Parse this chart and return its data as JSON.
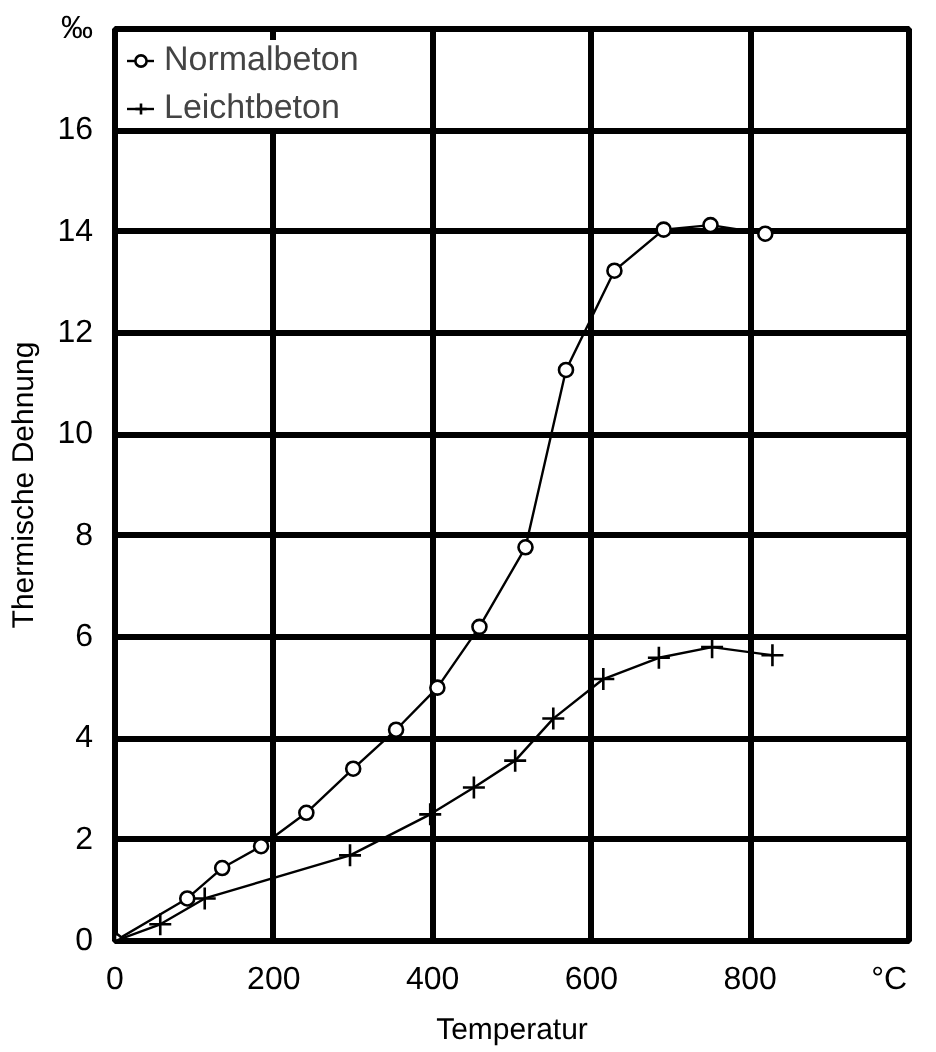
{
  "chart_data": {
    "type": "line",
    "xlabel": "Temperatur",
    "ylabel": "Thermische Dehnung",
    "xlim": [
      0,
      1000
    ],
    "ylim": [
      0,
      18
    ],
    "xticks": [
      0,
      200,
      400,
      600,
      800,
      {
        "value": 975,
        "label": "°C"
      }
    ],
    "yticks": [
      0,
      2,
      4,
      6,
      8,
      10,
      12,
      14,
      16,
      {
        "value": 18,
        "label": "‰"
      }
    ],
    "grid": true,
    "legend": "top left",
    "line_style": "solid",
    "series": [
      {
        "name": "Normalbeton",
        "color": "#000000",
        "marker": "circle",
        "x": [
          0,
          91,
          135,
          184,
          241,
          300,
          354,
          406,
          459,
          517,
          568,
          629,
          691,
          750,
          819
        ],
        "values": [
          0,
          0.84,
          1.44,
          1.87,
          2.53,
          3.4,
          4.17,
          5.0,
          6.2,
          7.77,
          11.27,
          13.23,
          14.04,
          14.13,
          13.96
        ]
      },
      {
        "name": "Leichtbeton",
        "color": "#000000",
        "marker": "cross",
        "x": [
          0,
          57,
          113,
          296,
          397,
          452,
          504,
          552,
          615,
          685,
          752,
          828
        ],
        "values": [
          0,
          0.33,
          0.84,
          1.69,
          2.5,
          3.03,
          3.56,
          4.39,
          5.17,
          5.59,
          5.8,
          5.64
        ]
      }
    ]
  }
}
